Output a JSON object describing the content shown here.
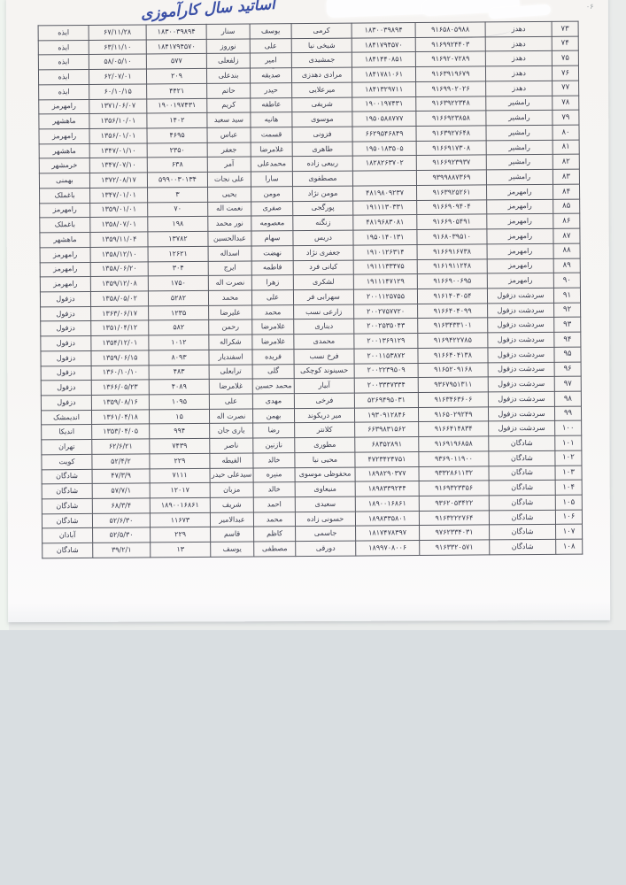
{
  "page": {
    "handwritten_title": "اساتید سال کارآموزی",
    "corner_mark": "۰۶"
  },
  "table": {
    "rows": [
      [
        "۷۳",
        "دهدز",
        "۹۱۶۵۸۰۵۹۸۸",
        "۱۸۳۰۰۳۹۸۹۴",
        "کرمی",
        "یوسف",
        "سنار",
        "۱۸۳۰۰۳۹۸۹۴",
        "۶۷/۱۱/۲۸",
        "ایذه"
      ],
      [
        "۷۴",
        "دهدز",
        "۹۱۶۹۹۲۴۴۰۳",
        "۱۸۴۱۷۹۴۵۷۰",
        "شیخی نیا",
        "علی",
        "نوروز",
        "۱۸۴۱۷۹۴۵۷۰",
        "۶۳/۱۱/۱۰",
        "ایذه"
      ],
      [
        "۷۵",
        "دهدز",
        "۹۱۶۹۲۰۷۲۸۹",
        "۱۸۴۱۴۴۰۸۵۱",
        "جمشیدی",
        "امیر",
        "زلفعلی",
        "۵۷۷",
        "۵۸/۰۵/۱۰",
        "ایذه"
      ],
      [
        "۷۶",
        "دهدز",
        "۹۱۶۳۹۱۹۶۷۹",
        "۱۸۴۱۷۸۱۰۶۱",
        "مرادی دهدزی",
        "صدیقه",
        "بندعلی",
        "۲۰۹",
        "۶۲/۰۷/۰۱",
        "ایذه"
      ],
      [
        "۷۷",
        "دهدز",
        "۹۱۶۹۹۰۲۰۲۶",
        "۱۸۴۱۳۲۹۷۱۱",
        "میرعلایی",
        "حیدر",
        "حاتم",
        "۴۴۲۱",
        "۶۰/۱۰/۱۵",
        "ایذه"
      ],
      [
        "۷۸",
        "رامشیر",
        "۹۱۶۳۹۲۲۳۴۸",
        "۱۹۰۰۱۹۷۴۳۱",
        "شریفی",
        "عاطفه",
        "کریم",
        "۱۹۰۰۱۹۷۴۳۱",
        "۱۳۷۱/۰۶/۰۷",
        "رامهرمز"
      ],
      [
        "۷۹",
        "رامشیر",
        "۹۱۶۶۹۲۳۸۵۸",
        "۱۹۵۰۵۸۸۷۷۷",
        "موسوی",
        "هانیه",
        "سید سعید",
        "۱۴۰۲",
        "۱۳۵۶/۱۰/۰۱",
        "ماهشهر"
      ],
      [
        "۸۰",
        "رامشیر",
        "۹۱۶۳۹۲۷۶۴۸",
        "۶۶۲۹۵۴۶۸۴۹",
        "فزونی",
        "قسمت",
        "عباس",
        "۴۶۹۵",
        "۱۳۵۶/۰۱/۰۱",
        "رامهرمز"
      ],
      [
        "۸۱",
        "رامشیر",
        "۹۱۶۶۹۱۷۳۰۸",
        "۱۹۵۰۱۸۳۵۰۵",
        "طاهری",
        "غلامرضا",
        "جعفر",
        "۲۳۵۰",
        "۱۳۴۷/۰۱/۱۰",
        "ماهشهر"
      ],
      [
        "۸۲",
        "رامشیر",
        "۹۱۶۶۹۲۳۹۳۷",
        "۱۸۲۸۲۶۳۷۰۲",
        "ربیعی زاده",
        "محمدعلی",
        "آمر",
        "۶۳۸",
        "۱۳۴۷/۰۷/۱۰",
        "خرمشهر"
      ],
      [
        "۸۳",
        "رامشیر",
        "۹۳۹۹۸۸۷۳۶۹",
        "",
        "مصطفوی",
        "سارا",
        "علی نجات",
        "۵۹۹۰۰۳۰۱۳۴",
        "۱۳۷۲/۰۸/۱۷",
        "بهمنی"
      ],
      [
        "۸۴",
        "رامهرمز",
        "۹۱۶۳۹۲۵۲۶۱",
        "۴۸۱۹۸۰۹۲۳۷",
        "مومن نژاد",
        "مومن",
        "یحیی",
        "۳",
        "۱۳۴۷/۰۱/۰۱",
        "باغملک"
      ],
      [
        "۸۵",
        "رامهرمز",
        "۹۱۶۶۹۰۹۴۰۴",
        "۱۹۱۱۱۳۰۳۳۱",
        "پورگجی",
        "صفری",
        "نعمت اله",
        "۷۰",
        "۱۳۵۹/۰۱/۰۱",
        "رامهرمز"
      ],
      [
        "۸۶",
        "رامهرمز",
        "۹۱۶۶۹۰۵۴۹۱",
        "۴۸۱۹۶۸۳۰۸۱",
        "زنگنه",
        "معصومه",
        "نور محمد",
        "۱۹۸",
        "۱۳۵۸/۰۷/۰۱",
        "باغملک"
      ],
      [
        "۸۷",
        "رامهرمز",
        "۹۱۶۸۰۳۹۵۱۰",
        "۱۹۵۰۱۴۰۱۳۱",
        "دریس",
        "سهام",
        "عبدالحسین",
        "۱۳۷۸۲",
        "۱۳۵۹/۱۱/۰۴",
        "ماهشهر"
      ],
      [
        "۸۸",
        "رامهرمز",
        "۹۱۶۶۹۱۶۷۳۸",
        "۱۹۱۰۱۲۶۳۱۴",
        "جعفری نژاد",
        "نهضت",
        "اسداله",
        "۱۲۶۲۱",
        "۱۳۵۸/۱۲/۱۰",
        "رامهرمز"
      ],
      [
        "۸۹",
        "رامهرمز",
        "۹۱۶۱۹۱۱۲۴۸",
        "۱۹۱۱۱۳۳۴۷۵",
        "کیانی فرد",
        "فاطمه",
        "ایرج",
        "۳۰۴",
        "۱۳۵۸/۰۶/۲۰",
        "رامهرمز"
      ],
      [
        "۹۰",
        "رامهرمز",
        "۹۱۶۶۹۰۰۶۹۵",
        "۱۹۱۱۱۴۷۱۲۹",
        "لشکری",
        "زهرا",
        "نصرت اله",
        "۱۷۵۰",
        "۱۳۵۹/۱۲/۰۸",
        "رامهرمز"
      ],
      [
        "۹۱",
        "سردشت دزفول",
        "۹۱۶۱۴۰۳۰۵۴",
        "۲۰۰۱۱۲۵۷۵۵",
        "سهرابی فر",
        "علی",
        "محمد",
        "۵۲۸۲",
        "۱۳۵۸/۰۵/۰۲",
        "دزفول"
      ],
      [
        "۹۲",
        "سردشت دزفول",
        "۹۱۶۶۴۰۴۰۹۹",
        "۲۰۰۲۷۵۷۷۲۰",
        "زارعی نسب",
        "محمد",
        "علیرضا",
        "۱۲۳۵",
        "۱۳۶۳/۰۶/۱۷",
        "دزفول"
      ],
      [
        "۹۳",
        "سردشت دزفول",
        "۹۱۶۳۴۳۳۱۰۱",
        "۲۰۰۲۵۳۵۰۴۳",
        "دیناری",
        "غلامرضا",
        "رحمن",
        "۵۸۲",
        "۱۳۵۱/۰۴/۱۲",
        "دزفول"
      ],
      [
        "۹۴",
        "سردشت دزفول",
        "۹۱۶۹۴۲۲۷۸۵",
        "۲۰۰۱۳۶۹۱۲۹",
        "محمدی",
        "غلامرضا",
        "شکراله",
        "۱۰۱۲",
        "۱۳۵۴/۱۲/۰۱",
        "دزفول"
      ],
      [
        "۹۵",
        "سردشت دزفول",
        "۹۱۶۶۴۰۴۱۳۸",
        "۲۰۰۱۱۵۳۸۷۲",
        "فرخ نسب",
        "فریده",
        "اسفندیار",
        "۸۰۹۳",
        "۱۳۵۹/۰۶/۱۵",
        "دزفول"
      ],
      [
        "۹۶",
        "سردشت دزفول",
        "۹۱۶۵۲۰۹۱۶۸",
        "۲۰۰۲۲۳۹۵۰۹",
        "حسینوند کوچکی",
        "گلی",
        "ترابعلی",
        "۴۸۳",
        "۱۳۶۰/۱۰/۱۰",
        "دزفول"
      ],
      [
        "۹۷",
        "سردشت دزفول",
        "۹۳۶۷۹۵۱۳۱۱",
        "۲۰۰۳۳۳۷۳۳۴",
        "آبیار",
        "محمد حسین",
        "غلامرضا",
        "۴۰۸۹",
        "۱۳۶۶/۰۵/۲۳",
        "دزفول"
      ],
      [
        "۹۸",
        "سردشت دزفول",
        "۹۱۶۳۴۶۳۶۰۶",
        "۵۲۶۹۴۹۵۰۳۱",
        "فرخی",
        "مهدی",
        "علی",
        "۱۰۹۵",
        "۱۳۵۹/۰۸/۱۶",
        "دزفول"
      ],
      [
        "۹۹",
        "سردشت دزفول",
        "۹۱۶۵۰۲۹۲۴۹",
        "۱۹۳۰۹۱۲۸۴۶",
        "میر دریکوند",
        "بهمن",
        "نصرت اله",
        "۱۵",
        "۱۳۶۱/۰۴/۱۸",
        "اندیمشک"
      ],
      [
        "۱۰۰",
        "سردشت دزفول",
        "۹۱۶۶۴۱۴۸۳۴",
        "۶۶۳۹۸۳۱۵۶۲",
        "کلانتر",
        "رضا",
        "یاری جان",
        "۹۹۴",
        "۱۳۵۳/۰۴/۰۵",
        "اندیکا"
      ],
      [
        "۱۰۱",
        "شادگان",
        "۹۱۶۹۱۹۶۸۵۸",
        "۶۸۳۵۲۸۹۱",
        "مطوری",
        "نازنین",
        "ناصر",
        "۷۴۳۹",
        "۶۲/۶/۲۱",
        "تهران"
      ],
      [
        "۱۰۲",
        "شادگان",
        "۹۳۶۹۰۱۱۹۰۰",
        "۴۷۲۳۴۲۴۷۵۱",
        "محیی نیا",
        "خالد",
        "الفیطه",
        "۲۲۹",
        "۵۲/۴/۲",
        "کویت"
      ],
      [
        "۱۰۳",
        "شادگان",
        "۹۳۳۲۸۶۱۱۳۲",
        "۱۸۹۸۲۹۰۳۷۷",
        "محفوظی موسوی",
        "منیره",
        "سیدعلی حیدر",
        "۷۱۱۱",
        "۴۷/۳/۹",
        "شادگان"
      ],
      [
        "۱۰۴",
        "شادگان",
        "۹۱۶۹۳۲۳۳۵۶",
        "۱۸۹۸۳۳۹۲۴۴",
        "منیعاوی",
        "خالد",
        "مزبان",
        "۱۲۰۱۷",
        "۵۷/۷/۱",
        "شادگان"
      ],
      [
        "۱۰۵",
        "شادگان",
        "۹۳۶۲۰۵۳۴۲۲",
        "۱۸۹۰۰۱۶۸۶۱",
        "سعیدی",
        "احمد",
        "شریف",
        "۱۸۹۰۰۱۶۸۶۱",
        "۶۸/۳/۴",
        "شادگان"
      ],
      [
        "۱۰۶",
        "شادگان",
        "۹۱۶۳۲۲۲۷۶۴",
        "۱۸۹۸۳۳۵۸۰۱",
        "حسونی زاده",
        "محمد",
        "عبدالامیر",
        "۱۱۶۷۳",
        "۵۲/۶/۳۰",
        "شادگان"
      ],
      [
        "۱۰۷",
        "شادگان",
        "۹۷۶۲۳۳۴۰۳۱",
        "۱۸۱۷۴۷۸۳۹۷",
        "جاسمی",
        "کاظم",
        "قاسم",
        "۲۲۹",
        "۵۲/۵/۳۰",
        "آبادان"
      ],
      [
        "۱۰۸",
        "شادگان",
        "۹۱۶۳۳۲۰۵۷۱",
        "۱۸۹۹۷۰۸۰۰۶",
        "دورقی",
        "مصطفی",
        "یوسف",
        "۱۳",
        "۳۹/۲/۱",
        "شادگان"
      ]
    ]
  }
}
